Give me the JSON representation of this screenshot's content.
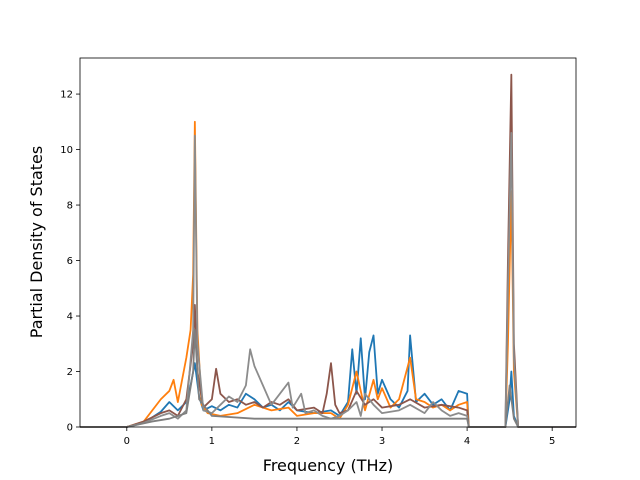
{
  "chart_data": {
    "type": "line",
    "xlabel": "Frequency (THz)",
    "ylabel": "Partial Density of States",
    "xlim": [
      -0.55,
      5.28
    ],
    "ylim": [
      0,
      13.3
    ],
    "xticks": [
      "0",
      "1",
      "2",
      "3",
      "4",
      "5"
    ],
    "yticks": [
      "0",
      "2",
      "4",
      "6",
      "8",
      "10",
      "12"
    ],
    "grid": false,
    "series": [
      {
        "color": "#1f77b4",
        "points": [
          [
            -0.55,
            0
          ],
          [
            0,
            0
          ],
          [
            0.2,
            0.15
          ],
          [
            0.4,
            0.55
          ],
          [
            0.5,
            0.9
          ],
          [
            0.6,
            0.6
          ],
          [
            0.7,
            0.9
          ],
          [
            0.75,
            1.5
          ],
          [
            0.8,
            2.3
          ],
          [
            0.85,
            1.1
          ],
          [
            0.9,
            0.6
          ],
          [
            1.0,
            0.75
          ],
          [
            1.1,
            0.6
          ],
          [
            1.2,
            0.8
          ],
          [
            1.3,
            0.7
          ],
          [
            1.4,
            1.2
          ],
          [
            1.5,
            1.0
          ],
          [
            1.6,
            0.7
          ],
          [
            1.7,
            0.8
          ],
          [
            1.8,
            0.6
          ],
          [
            1.9,
            0.9
          ],
          [
            2.0,
            0.6
          ],
          [
            2.2,
            0.5
          ],
          [
            2.4,
            0.6
          ],
          [
            2.5,
            0.4
          ],
          [
            2.6,
            0.9
          ],
          [
            2.65,
            2.8
          ],
          [
            2.7,
            1.2
          ],
          [
            2.75,
            3.2
          ],
          [
            2.8,
            1.0
          ],
          [
            2.85,
            2.7
          ],
          [
            2.9,
            3.3
          ],
          [
            2.95,
            1.2
          ],
          [
            3.0,
            1.7
          ],
          [
            3.1,
            1.0
          ],
          [
            3.2,
            0.7
          ],
          [
            3.3,
            1.3
          ],
          [
            3.33,
            3.3
          ],
          [
            3.4,
            0.9
          ],
          [
            3.5,
            1.2
          ],
          [
            3.6,
            0.8
          ],
          [
            3.7,
            1.0
          ],
          [
            3.8,
            0.6
          ],
          [
            3.9,
            1.3
          ],
          [
            4.0,
            1.2
          ],
          [
            4.02,
            0
          ],
          [
            4.45,
            0
          ],
          [
            4.5,
            1.0
          ],
          [
            4.52,
            2.0
          ],
          [
            4.55,
            0.4
          ],
          [
            4.6,
            0
          ],
          [
            5.28,
            0
          ]
        ]
      },
      {
        "color": "#ff7f0e",
        "points": [
          [
            -0.55,
            0
          ],
          [
            0,
            0
          ],
          [
            0.2,
            0.2
          ],
          [
            0.4,
            1.0
          ],
          [
            0.5,
            1.3
          ],
          [
            0.55,
            1.7
          ],
          [
            0.6,
            0.9
          ],
          [
            0.7,
            2.5
          ],
          [
            0.75,
            3.5
          ],
          [
            0.78,
            5.5
          ],
          [
            0.8,
            11.0
          ],
          [
            0.83,
            3.5
          ],
          [
            0.88,
            0.8
          ],
          [
            0.95,
            0.5
          ],
          [
            1.1,
            0.4
          ],
          [
            1.3,
            0.5
          ],
          [
            1.5,
            0.8
          ],
          [
            1.7,
            0.6
          ],
          [
            1.9,
            0.7
          ],
          [
            2.0,
            0.4
          ],
          [
            2.2,
            0.5
          ],
          [
            2.4,
            0.5
          ],
          [
            2.5,
            0.3
          ],
          [
            2.6,
            0.8
          ],
          [
            2.7,
            2.0
          ],
          [
            2.75,
            1.3
          ],
          [
            2.8,
            0.6
          ],
          [
            2.9,
            1.7
          ],
          [
            2.95,
            1.0
          ],
          [
            3.0,
            1.4
          ],
          [
            3.1,
            0.7
          ],
          [
            3.2,
            1.0
          ],
          [
            3.33,
            2.5
          ],
          [
            3.4,
            1.0
          ],
          [
            3.5,
            0.9
          ],
          [
            3.6,
            0.7
          ],
          [
            3.7,
            0.8
          ],
          [
            3.8,
            0.6
          ],
          [
            3.9,
            0.8
          ],
          [
            4.0,
            0.9
          ],
          [
            4.02,
            0
          ],
          [
            4.45,
            0
          ],
          [
            4.48,
            3.0
          ],
          [
            4.52,
            8.5
          ],
          [
            4.55,
            2.0
          ],
          [
            4.6,
            0
          ],
          [
            5.28,
            0
          ]
        ]
      },
      {
        "color": "#8c564b",
        "points": [
          [
            -0.55,
            0
          ],
          [
            0,
            0
          ],
          [
            0.2,
            0.2
          ],
          [
            0.4,
            0.5
          ],
          [
            0.5,
            0.6
          ],
          [
            0.6,
            0.4
          ],
          [
            0.7,
            1.0
          ],
          [
            0.78,
            3.0
          ],
          [
            0.8,
            4.4
          ],
          [
            0.83,
            2.0
          ],
          [
            0.9,
            0.7
          ],
          [
            1.0,
            1.0
          ],
          [
            1.05,
            2.1
          ],
          [
            1.1,
            1.2
          ],
          [
            1.2,
            0.9
          ],
          [
            1.3,
            1.0
          ],
          [
            1.4,
            0.8
          ],
          [
            1.5,
            0.9
          ],
          [
            1.6,
            0.7
          ],
          [
            1.7,
            0.9
          ],
          [
            1.8,
            0.8
          ],
          [
            1.9,
            1.0
          ],
          [
            2.0,
            0.6
          ],
          [
            2.2,
            0.7
          ],
          [
            2.3,
            0.5
          ],
          [
            2.35,
            1.2
          ],
          [
            2.4,
            2.3
          ],
          [
            2.45,
            0.8
          ],
          [
            2.5,
            0.5
          ],
          [
            2.6,
            0.6
          ],
          [
            2.7,
            1.3
          ],
          [
            2.8,
            0.8
          ],
          [
            2.9,
            1.0
          ],
          [
            3.0,
            0.7
          ],
          [
            3.2,
            0.8
          ],
          [
            3.33,
            1.0
          ],
          [
            3.5,
            0.7
          ],
          [
            3.7,
            0.8
          ],
          [
            3.9,
            0.7
          ],
          [
            4.0,
            0.6
          ],
          [
            4.02,
            0
          ],
          [
            4.45,
            0
          ],
          [
            4.48,
            6.0
          ],
          [
            4.52,
            12.7
          ],
          [
            4.55,
            3.0
          ],
          [
            4.6,
            0
          ],
          [
            5.28,
            0
          ]
        ]
      },
      {
        "color": "#8c8c8c",
        "points": [
          [
            -0.55,
            0
          ],
          [
            0,
            0
          ],
          [
            0.2,
            0.15
          ],
          [
            0.4,
            0.4
          ],
          [
            0.5,
            0.5
          ],
          [
            0.6,
            0.3
          ],
          [
            0.7,
            0.6
          ],
          [
            0.78,
            3.5
          ],
          [
            0.8,
            10.5
          ],
          [
            0.83,
            3.0
          ],
          [
            0.9,
            0.6
          ],
          [
            1.0,
            0.5
          ],
          [
            1.1,
            0.8
          ],
          [
            1.2,
            1.1
          ],
          [
            1.3,
            0.9
          ],
          [
            1.4,
            1.5
          ],
          [
            1.45,
            2.8
          ],
          [
            1.5,
            2.2
          ],
          [
            1.6,
            1.5
          ],
          [
            1.7,
            0.8
          ],
          [
            1.8,
            1.2
          ],
          [
            1.9,
            1.6
          ],
          [
            1.95,
            0.7
          ],
          [
            2.05,
            1.2
          ],
          [
            2.1,
            0.5
          ],
          [
            2.2,
            0.6
          ],
          [
            2.3,
            0.4
          ],
          [
            2.4,
            0.3
          ],
          [
            2.5,
            0.4
          ],
          [
            2.6,
            0.6
          ],
          [
            2.7,
            0.9
          ],
          [
            2.75,
            0.4
          ],
          [
            2.8,
            1.2
          ],
          [
            2.9,
            0.8
          ],
          [
            3.0,
            0.5
          ],
          [
            3.2,
            0.6
          ],
          [
            3.33,
            0.8
          ],
          [
            3.5,
            0.5
          ],
          [
            3.6,
            0.9
          ],
          [
            3.7,
            0.6
          ],
          [
            3.8,
            0.4
          ],
          [
            3.9,
            0.5
          ],
          [
            4.0,
            0.4
          ],
          [
            4.02,
            0
          ],
          [
            4.45,
            0
          ],
          [
            4.48,
            5.0
          ],
          [
            4.52,
            10.6
          ],
          [
            4.55,
            2.5
          ],
          [
            4.6,
            0
          ],
          [
            5.28,
            0
          ]
        ]
      },
      {
        "color": "#7f7f7f",
        "points": [
          [
            -0.55,
            0
          ],
          [
            0,
            0
          ],
          [
            0.3,
            0.2
          ],
          [
            0.5,
            0.3
          ],
          [
            0.7,
            0.5
          ],
          [
            0.78,
            2.0
          ],
          [
            0.8,
            3.5
          ],
          [
            0.85,
            1.0
          ],
          [
            1.0,
            0.4
          ],
          [
            1.5,
            0.3
          ],
          [
            2.0,
            0.3
          ],
          [
            2.5,
            0.3
          ],
          [
            3.0,
            0.3
          ],
          [
            3.5,
            0.3
          ],
          [
            4.0,
            0.3
          ],
          [
            4.02,
            0
          ],
          [
            4.45,
            0
          ],
          [
            4.5,
            1.5
          ],
          [
            4.55,
            0.3
          ],
          [
            4.6,
            0
          ],
          [
            5.28,
            0
          ]
        ]
      }
    ]
  }
}
